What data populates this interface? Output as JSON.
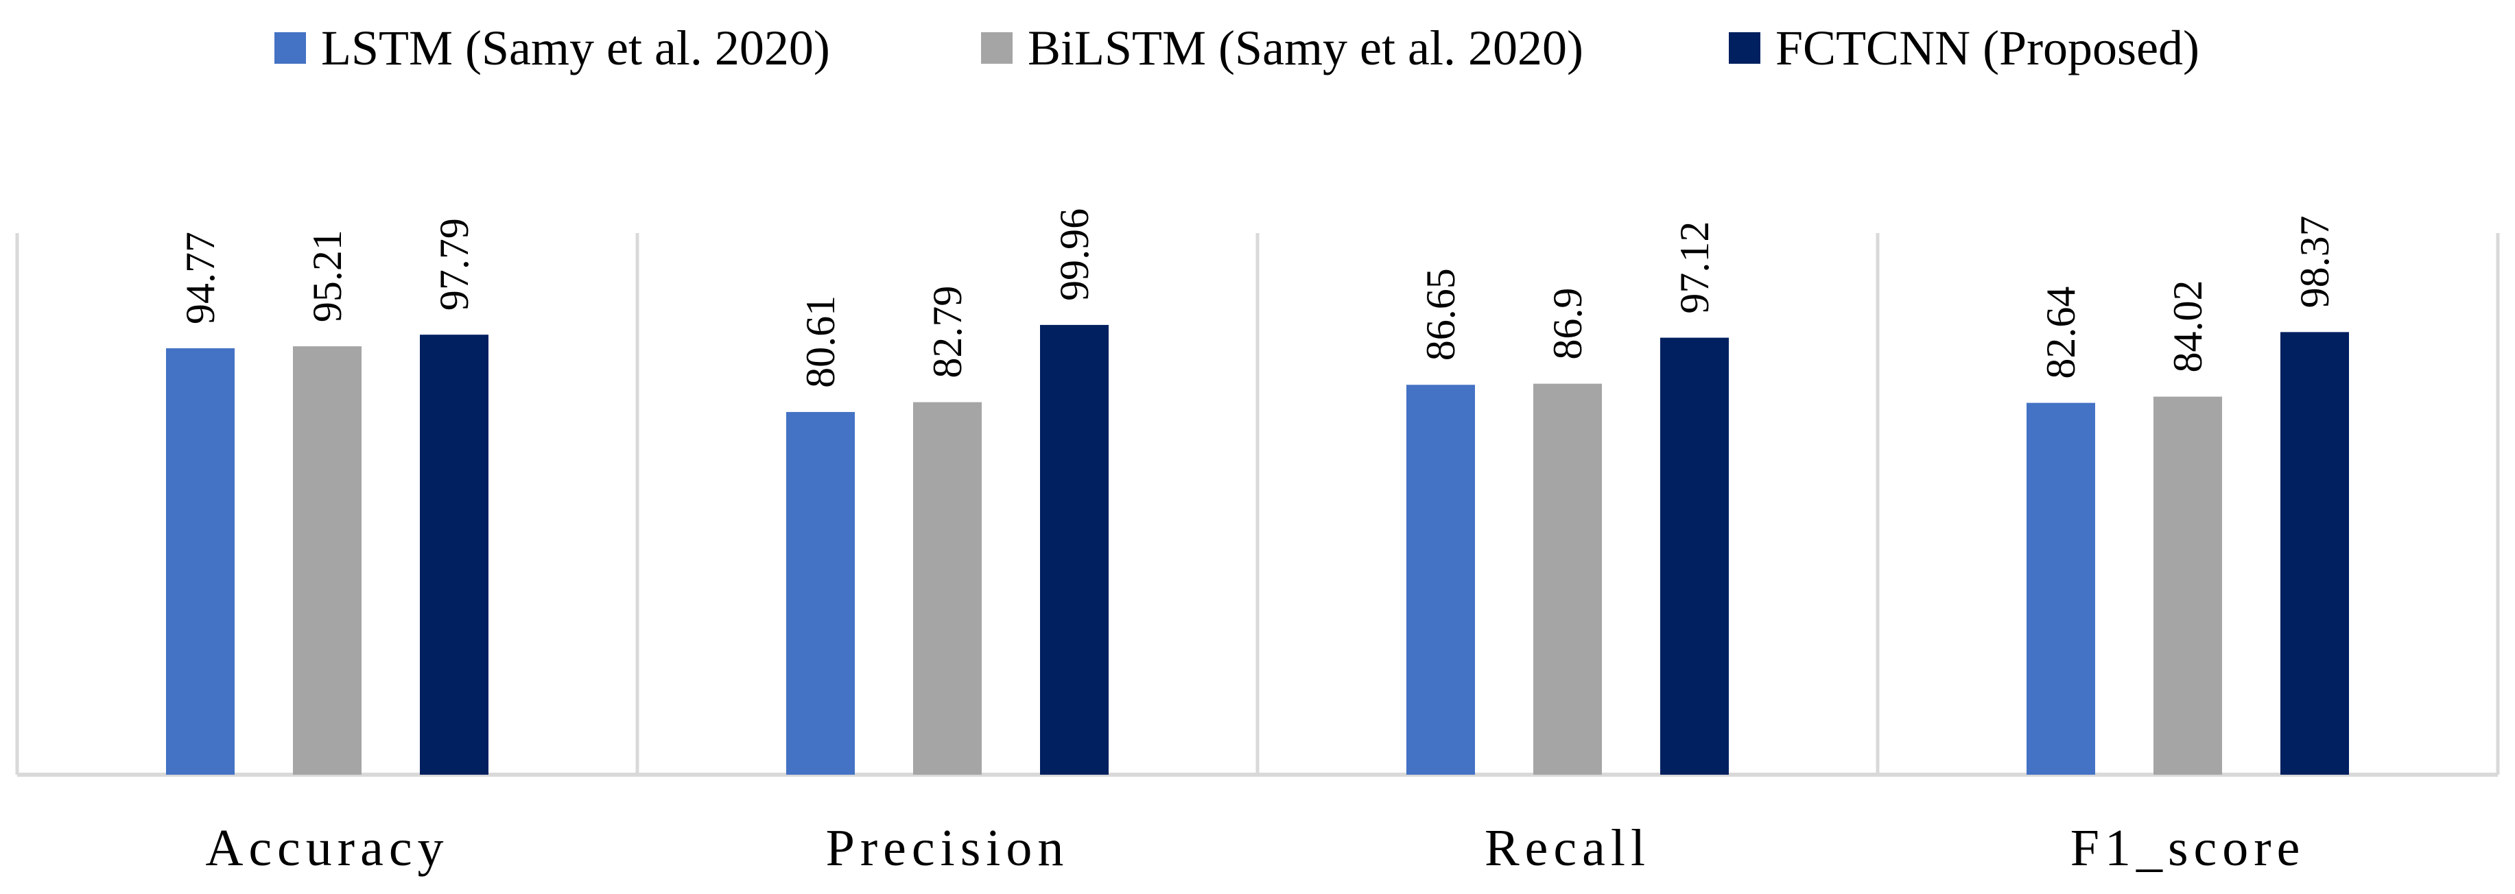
{
  "chart_data": {
    "type": "bar",
    "title": "",
    "xlabel": "",
    "ylabel": "",
    "ylim": [
      0,
      115
    ],
    "grid": false,
    "legend_position": "top",
    "categories": [
      "Accuracy",
      "Precision",
      "Recall",
      "F1_score"
    ],
    "series": [
      {
        "name": "LSTM (Samy et al. 2020)",
        "color": "#4472C4",
        "values": [
          94.77,
          80.61,
          86.65,
          82.64
        ],
        "labels": [
          "94.77",
          "80.61",
          "86.65",
          "82.64"
        ]
      },
      {
        "name": "BiLSTM (Samy et al. 2020)",
        "color": "#A5A5A5",
        "values": [
          95.21,
          82.79,
          86.9,
          84.02
        ],
        "labels": [
          "95.21",
          "82.79",
          "86.9",
          "84.02"
        ]
      },
      {
        "name": "FCTCNN (Proposed)",
        "color": "#002060",
        "values": [
          97.79,
          99.96,
          97.12,
          98.37
        ],
        "labels": [
          "97.79",
          "99.96",
          "97.12",
          "98.37"
        ]
      }
    ],
    "axis_color": "#D9D9D9"
  }
}
